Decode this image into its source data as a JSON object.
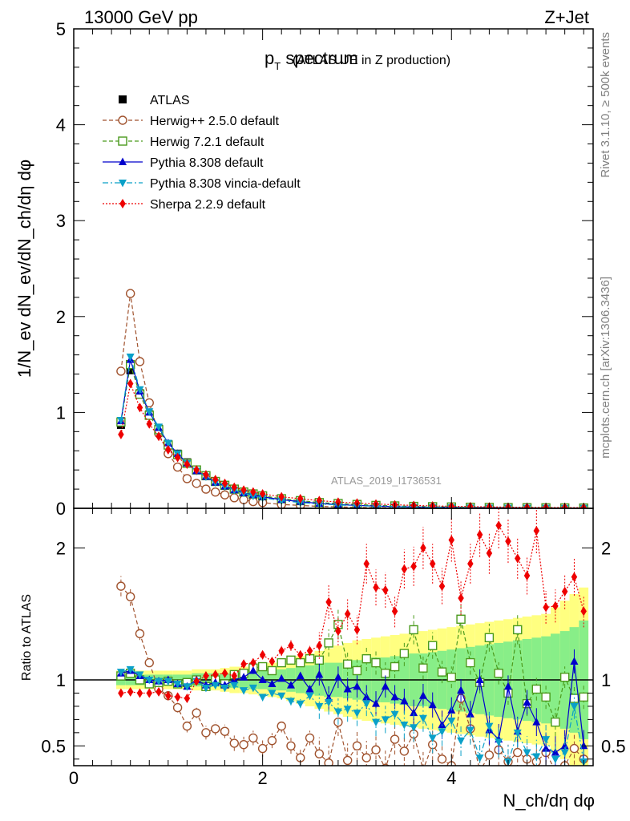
{
  "header": {
    "left": "13000 GeV pp",
    "right": "Z+Jet"
  },
  "side": {
    "rivet": "Rivet 3.1.10, ≥ 500k events",
    "mcplots": "mcplots.cern.ch [arXiv:1306.3436]"
  },
  "watermark": "ATLAS_2019_I1736531",
  "chart_data": [
    {
      "type": "scatter",
      "panel": "main",
      "title": "p_T spectrum",
      "title_main": "p",
      "title_sub": "T",
      "title_rest": " spectrum",
      "subtitle": "(ATLAS UE in Z production)",
      "ylabel": "1/N_ev dN_ev/dN_ch/dη dφ",
      "xlabel": "N_ch/dη dφ",
      "xlim": [
        0,
        5.5
      ],
      "ylim": [
        0,
        5
      ],
      "xticks": [
        "0",
        "2",
        "4"
      ],
      "xtick_values": [
        0,
        2,
        4
      ],
      "yticks": [
        "0",
        "1",
        "2",
        "3",
        "4",
        "5"
      ],
      "ytick_values": [
        0,
        1,
        2,
        3,
        4,
        5
      ],
      "x": [
        0.5,
        0.6,
        0.7,
        0.8,
        0.9,
        1.0,
        1.1,
        1.2,
        1.3,
        1.4,
        1.5,
        1.6,
        1.7,
        1.8,
        1.9,
        2.0,
        2.2,
        2.4,
        2.6,
        2.8,
        3.0,
        3.2,
        3.4,
        3.6,
        3.8,
        4.0,
        4.2,
        4.4,
        4.6,
        4.8,
        5.0,
        5.2,
        5.4
      ],
      "series": [
        {
          "name": "ATLAS",
          "color": "#000000",
          "marker": "square",
          "line": "none",
          "values": [
            0.87,
            1.44,
            1.2,
            0.98,
            0.83,
            0.67,
            0.57,
            0.48,
            0.4,
            0.34,
            0.28,
            0.24,
            0.2,
            0.17,
            0.14,
            0.12,
            0.09,
            0.07,
            0.05,
            0.04,
            0.03,
            0.025,
            0.02,
            0.016,
            0.013,
            0.011,
            0.009,
            0.007,
            0.006,
            0.005,
            0.004,
            0.003,
            0.003
          ]
        },
        {
          "name": "Herwig++ 2.5.0 default",
          "color": "#a0522d",
          "marker": "circle-open",
          "line": "dashed",
          "values": [
            1.43,
            2.24,
            1.53,
            1.1,
            0.78,
            0.57,
            0.43,
            0.31,
            0.26,
            0.2,
            0.17,
            0.14,
            0.11,
            0.09,
            0.07,
            0.06,
            0.04,
            0.03,
            0.02,
            0.015,
            0.01,
            0.008,
            0.006,
            0.005,
            0.004,
            0.003,
            0.003,
            0.002,
            0.002,
            0.002,
            0.001,
            0.001,
            0.001
          ]
        },
        {
          "name": "Herwig 7.2.1 default",
          "color": "#4a9a1c",
          "marker": "square-open",
          "line": "dashed",
          "values": [
            0.9,
            1.5,
            1.19,
            0.97,
            0.82,
            0.66,
            0.56,
            0.47,
            0.4,
            0.34,
            0.28,
            0.24,
            0.2,
            0.17,
            0.15,
            0.13,
            0.1,
            0.08,
            0.06,
            0.05,
            0.04,
            0.03,
            0.025,
            0.02,
            0.017,
            0.014,
            0.011,
            0.009,
            0.007,
            0.006,
            0.005,
            0.004,
            0.003
          ]
        },
        {
          "name": "Pythia 8.308 default",
          "color": "#0000cc",
          "marker": "triangle-up",
          "line": "solid",
          "values": [
            0.91,
            1.55,
            1.22,
            1.0,
            0.84,
            0.68,
            0.57,
            0.47,
            0.39,
            0.33,
            0.27,
            0.23,
            0.19,
            0.16,
            0.14,
            0.12,
            0.09,
            0.07,
            0.05,
            0.04,
            0.03,
            0.024,
            0.018,
            0.014,
            0.011,
            0.009,
            0.007,
            0.006,
            0.005,
            0.004,
            0.003,
            0.003,
            0.002
          ]
        },
        {
          "name": "Pythia 8.308 vincia-default",
          "color": "#0aa0c8",
          "marker": "triangle-down",
          "line": "dashdot",
          "values": [
            0.92,
            1.58,
            1.24,
            1.01,
            0.85,
            0.68,
            0.57,
            0.47,
            0.39,
            0.33,
            0.27,
            0.23,
            0.19,
            0.16,
            0.13,
            0.11,
            0.08,
            0.06,
            0.045,
            0.035,
            0.027,
            0.021,
            0.016,
            0.012,
            0.01,
            0.008,
            0.006,
            0.005,
            0.004,
            0.003,
            0.003,
            0.002,
            0.002
          ]
        },
        {
          "name": "Sherpa 2.2.9 default",
          "color": "#ee0000",
          "marker": "diamond",
          "line": "dotted",
          "values": [
            0.77,
            1.3,
            1.05,
            0.88,
            0.75,
            0.61,
            0.53,
            0.46,
            0.4,
            0.35,
            0.3,
            0.26,
            0.22,
            0.19,
            0.17,
            0.15,
            0.12,
            0.1,
            0.08,
            0.065,
            0.055,
            0.045,
            0.037,
            0.03,
            0.025,
            0.021,
            0.018,
            0.015,
            0.012,
            0.01,
            0.009,
            0.008,
            0.007
          ]
        }
      ]
    },
    {
      "type": "scatter",
      "panel": "ratio",
      "ylabel": "Ratio to ATLAS",
      "xlim": [
        0,
        5.5
      ],
      "ylim": [
        0.35,
        2.3
      ],
      "yticks": [
        "0.5",
        "1",
        "2"
      ],
      "ytick_values": [
        0.5,
        1,
        2
      ],
      "band_x": [
        0.5,
        0.6,
        0.7,
        0.8,
        0.9,
        1.0,
        1.1,
        1.2,
        1.3,
        1.4,
        1.5,
        1.6,
        1.7,
        1.8,
        1.9,
        2.0,
        2.1,
        2.2,
        2.3,
        2.4,
        2.5,
        2.6,
        2.7,
        2.8,
        2.9,
        3.0,
        3.1,
        3.2,
        3.3,
        3.4,
        3.5,
        3.6,
        3.7,
        3.8,
        3.9,
        4.0,
        4.1,
        4.2,
        4.3,
        4.4,
        4.5,
        4.6,
        4.7,
        4.8,
        4.9,
        5.0,
        5.1,
        5.2,
        5.3,
        5.4
      ],
      "band_inner": [
        0.04,
        0.04,
        0.04,
        0.04,
        0.04,
        0.04,
        0.04,
        0.04,
        0.05,
        0.05,
        0.05,
        0.05,
        0.06,
        0.06,
        0.07,
        0.07,
        0.08,
        0.08,
        0.09,
        0.1,
        0.11,
        0.12,
        0.13,
        0.13,
        0.14,
        0.15,
        0.16,
        0.17,
        0.17,
        0.18,
        0.19,
        0.2,
        0.2,
        0.21,
        0.22,
        0.23,
        0.24,
        0.25,
        0.26,
        0.27,
        0.28,
        0.29,
        0.3,
        0.31,
        0.32,
        0.33,
        0.35,
        0.37,
        0.4,
        0.45
      ],
      "band_outer": [
        0.07,
        0.07,
        0.07,
        0.07,
        0.07,
        0.07,
        0.07,
        0.07,
        0.08,
        0.08,
        0.08,
        0.09,
        0.1,
        0.1,
        0.11,
        0.12,
        0.13,
        0.14,
        0.16,
        0.18,
        0.2,
        0.22,
        0.24,
        0.26,
        0.28,
        0.3,
        0.31,
        0.32,
        0.33,
        0.34,
        0.35,
        0.36,
        0.37,
        0.38,
        0.39,
        0.4,
        0.41,
        0.42,
        0.43,
        0.44,
        0.45,
        0.46,
        0.47,
        0.48,
        0.49,
        0.5,
        0.55,
        0.6,
        0.65,
        0.7
      ],
      "x": [
        0.5,
        0.6,
        0.7,
        0.8,
        0.9,
        1.0,
        1.1,
        1.2,
        1.3,
        1.4,
        1.5,
        1.6,
        1.7,
        1.8,
        1.9,
        2.0,
        2.1,
        2.2,
        2.3,
        2.4,
        2.5,
        2.6,
        2.7,
        2.8,
        2.9,
        3.0,
        3.1,
        3.2,
        3.3,
        3.4,
        3.5,
        3.6,
        3.7,
        3.8,
        3.9,
        4.0,
        4.1,
        4.2,
        4.3,
        4.4,
        4.5,
        4.6,
        4.7,
        4.8,
        4.9,
        5.0,
        5.1,
        5.2,
        5.3,
        5.4
      ],
      "series": [
        {
          "name": "Herwig++ 2.5.0 default",
          "color": "#a0522d",
          "marker": "circle-open",
          "line": "dashed",
          "values": [
            1.71,
            1.63,
            1.35,
            1.13,
            0.93,
            0.88,
            0.79,
            0.65,
            0.75,
            0.6,
            0.63,
            0.61,
            0.52,
            0.51,
            0.56,
            0.48,
            0.54,
            0.65,
            0.5,
            0.41,
            0.56,
            0.44,
            0.37,
            0.68,
            0.39,
            0.5,
            0.41,
            0.47,
            0.33,
            0.55,
            0.46,
            0.59,
            0.32,
            0.51,
            0.4,
            0.35,
            0.86,
            0.63,
            0.31,
            0.43,
            0.47,
            0.38,
            0.45,
            0.4,
            0.38,
            0.45,
            0.31,
            0.35,
            0.48,
            0.4
          ]
        },
        {
          "name": "Herwig 7.2.1 default",
          "color": "#4a9a1c",
          "marker": "square-open",
          "line": "dashed",
          "values": [
            1.03,
            1.05,
            1.0,
            0.97,
            0.98,
            0.99,
            0.97,
            0.98,
            1.0,
            0.95,
            1.0,
            0.97,
            1.04,
            1.05,
            1.09,
            1.1,
            1.07,
            1.13,
            1.15,
            1.13,
            1.16,
            1.15,
            1.28,
            1.42,
            1.12,
            1.07,
            1.16,
            1.13,
            1.05,
            1.1,
            1.2,
            1.38,
            1.09,
            1.26,
            1.06,
            1.02,
            1.46,
            1.13,
            0.98,
            1.32,
            1.05,
            0.9,
            1.38,
            0.82,
            0.93,
            0.87,
            0.68,
            1.02,
            0.86,
            0.87
          ]
        },
        {
          "name": "Pythia 8.308 default",
          "color": "#0000cc",
          "marker": "triangle-up",
          "line": "solid",
          "values": [
            1.05,
            1.07,
            1.03,
            1.0,
            0.99,
            1.0,
            0.97,
            0.95,
            1.0,
            0.96,
            0.98,
            0.96,
            1.0,
            1.02,
            1.07,
            1.0,
            0.97,
            1.01,
            0.96,
            1.03,
            0.93,
            1.04,
            0.86,
            1.02,
            0.93,
            0.95,
            0.87,
            0.82,
            0.95,
            0.87,
            0.84,
            0.75,
            0.88,
            0.81,
            0.66,
            0.77,
            0.92,
            0.74,
            1.0,
            0.62,
            0.55,
            0.95,
            0.61,
            0.83,
            0.68,
            0.48,
            0.45,
            0.5,
            1.14,
            0.5
          ]
        },
        {
          "name": "Pythia 8.308 vincia-default",
          "color": "#0aa0c8",
          "marker": "triangle-down",
          "line": "dashdot",
          "values": [
            1.06,
            1.08,
            1.04,
            1.0,
            0.99,
            0.99,
            0.97,
            0.95,
            0.99,
            0.94,
            0.96,
            0.94,
            0.96,
            0.92,
            0.94,
            0.87,
            0.9,
            0.88,
            0.84,
            0.82,
            0.88,
            0.8,
            0.83,
            0.76,
            0.78,
            0.75,
            0.82,
            0.68,
            0.7,
            0.74,
            0.66,
            0.64,
            0.71,
            0.56,
            0.61,
            0.69,
            0.54,
            0.62,
            0.41,
            0.65,
            0.53,
            0.38,
            0.6,
            0.45,
            0.42,
            0.55,
            0.4,
            0.45,
            0.8,
            0.38
          ]
        },
        {
          "name": "Sherpa 2.2.9 default",
          "color": "#ee0000",
          "marker": "diamond",
          "line": "dotted",
          "values": [
            0.9,
            0.91,
            0.9,
            0.9,
            0.91,
            0.88,
            0.87,
            0.86,
            0.99,
            1.03,
            1.04,
            1.05,
            1.03,
            1.12,
            1.13,
            1.19,
            1.14,
            1.22,
            1.26,
            1.19,
            1.22,
            1.26,
            1.59,
            1.37,
            1.5,
            1.38,
            1.88,
            1.7,
            1.68,
            1.52,
            1.84,
            1.86,
            2.0,
            1.88,
            1.71,
            2.06,
            1.62,
            1.88,
            2.1,
            1.96,
            2.17,
            2.05,
            1.92,
            1.79,
            2.13,
            1.55,
            1.56,
            1.67,
            1.78,
            1.52
          ]
        }
      ]
    }
  ]
}
